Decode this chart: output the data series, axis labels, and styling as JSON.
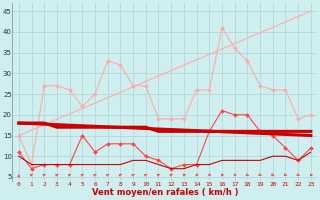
{
  "xlabel": "Vent moyen/en rafales ( km/h )",
  "background_color": "#ceeef0",
  "grid_color": "#aacccc",
  "ylim": [
    4,
    47
  ],
  "yticks": [
    5,
    10,
    15,
    20,
    25,
    30,
    35,
    40,
    45
  ],
  "x_ticks": [
    0,
    1,
    2,
    3,
    4,
    5,
    6,
    7,
    8,
    9,
    10,
    11,
    12,
    13,
    14,
    15,
    16,
    17,
    18,
    19,
    20,
    21,
    22,
    23
  ],
  "series": [
    {
      "name": "rafales_light_jagged",
      "x": [
        0,
        1,
        2,
        3,
        4,
        5,
        6,
        7,
        8,
        9,
        10,
        11,
        12,
        13,
        14,
        15,
        16,
        17,
        18,
        19,
        20,
        21,
        22,
        23
      ],
      "y": [
        15,
        8,
        27,
        27,
        26,
        22,
        25,
        33,
        32,
        27,
        27,
        19,
        19,
        19,
        26,
        26,
        41,
        36,
        33,
        27,
        26,
        26,
        19,
        20
      ],
      "color": "#ffaaaa",
      "linewidth": 0.8,
      "marker": "D",
      "markersize": 2.0,
      "linestyle": "-",
      "zorder": 2
    },
    {
      "name": "rafales_light_trend",
      "x": [
        0,
        23
      ],
      "y": [
        15,
        45
      ],
      "color": "#ffaaaa",
      "linewidth": 0.8,
      "marker": null,
      "markersize": 0,
      "linestyle": "-",
      "zorder": 2
    },
    {
      "name": "vent_medium_jagged",
      "x": [
        0,
        1,
        2,
        3,
        4,
        5,
        6,
        7,
        8,
        9,
        10,
        11,
        12,
        13,
        14,
        15,
        16,
        17,
        18,
        19,
        20,
        21,
        22,
        23
      ],
      "y": [
        11,
        7,
        8,
        8,
        8,
        15,
        11,
        13,
        13,
        13,
        10,
        9,
        7,
        8,
        8,
        16,
        21,
        20,
        20,
        16,
        15,
        12,
        9,
        12
      ],
      "color": "#ff4444",
      "linewidth": 0.8,
      "marker": "D",
      "markersize": 2.0,
      "linestyle": "-",
      "zorder": 3
    },
    {
      "name": "vent_avg_trend",
      "x": [
        0,
        23
      ],
      "y": [
        18,
        15
      ],
      "color": "#cc0000",
      "linewidth": 2.2,
      "marker": null,
      "markersize": 0,
      "linestyle": "-",
      "zorder": 4
    },
    {
      "name": "vent_avg_flat",
      "x": [
        0,
        1,
        2,
        3,
        4,
        5,
        6,
        7,
        8,
        9,
        10,
        11,
        12,
        13,
        14,
        15,
        16,
        17,
        18,
        19,
        20,
        21,
        22,
        23
      ],
      "y": [
        18,
        18,
        18,
        17,
        17,
        17,
        17,
        17,
        17,
        17,
        17,
        16,
        16,
        16,
        16,
        16,
        16,
        16,
        16,
        16,
        16,
        16,
        16,
        16
      ],
      "color": "#cc0000",
      "linewidth": 2.2,
      "marker": null,
      "markersize": 0,
      "linestyle": "-",
      "zorder": 4
    },
    {
      "name": "vent_min_flat",
      "x": [
        0,
        1,
        2,
        3,
        4,
        5,
        6,
        7,
        8,
        9,
        10,
        11,
        12,
        13,
        14,
        15,
        16,
        17,
        18,
        19,
        20,
        21,
        22,
        23
      ],
      "y": [
        10,
        8,
        8,
        8,
        8,
        8,
        8,
        8,
        8,
        9,
        9,
        8,
        7,
        7,
        8,
        8,
        9,
        9,
        9,
        9,
        10,
        10,
        9,
        11
      ],
      "color": "#cc0000",
      "linewidth": 0.8,
      "marker": null,
      "markersize": 0,
      "linestyle": "-",
      "zorder": 3
    }
  ],
  "arrows": {
    "x": [
      0,
      1,
      2,
      3,
      4,
      5,
      6,
      7,
      8,
      9,
      10,
      11,
      12,
      13,
      14,
      15,
      16,
      17,
      18,
      19,
      20,
      21,
      22,
      23
    ],
    "angles": [
      90,
      45,
      45,
      45,
      45,
      45,
      45,
      45,
      45,
      45,
      45,
      45,
      45,
      0,
      0,
      0,
      0,
      0,
      315,
      315,
      315,
      315,
      315,
      0
    ],
    "y": 5.5,
    "color": "#ff4444"
  }
}
